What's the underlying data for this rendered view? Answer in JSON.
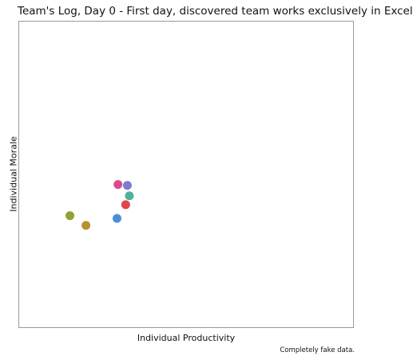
{
  "chart_data": {
    "type": "scatter",
    "title": "Team's Log, Day 0 - First day, discovered team works exclusively in Excel",
    "xlabel": "Individual Productivity",
    "ylabel": "Individual Morale",
    "xlim": [
      0,
      100
    ],
    "ylim": [
      0,
      100
    ],
    "grid": false,
    "caption": "Completely fake data.",
    "points": [
      {
        "x": 29.6,
        "y": 46.7,
        "color": "#d84b8a"
      },
      {
        "x": 32.4,
        "y": 46.4,
        "color": "#7e7ad0"
      },
      {
        "x": 33.0,
        "y": 43.0,
        "color": "#4fb29b"
      },
      {
        "x": 31.9,
        "y": 40.1,
        "color": "#e24747"
      },
      {
        "x": 29.3,
        "y": 35.6,
        "color": "#4a8fd6"
      },
      {
        "x": 15.2,
        "y": 36.5,
        "color": "#8ea336"
      },
      {
        "x": 20.0,
        "y": 33.3,
        "color": "#b8922e"
      }
    ]
  }
}
